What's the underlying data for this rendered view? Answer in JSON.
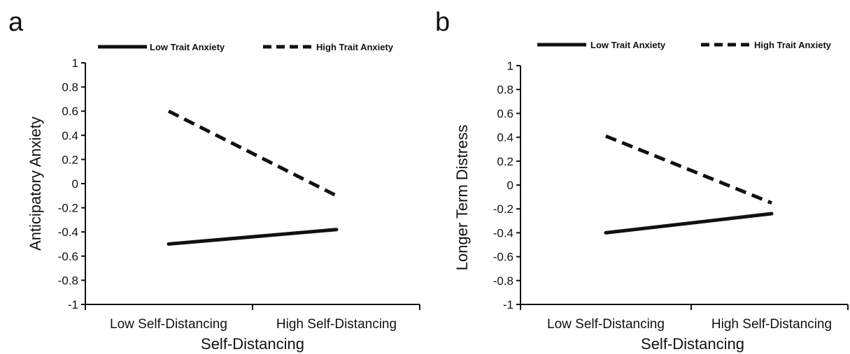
{
  "chart_data": [
    {
      "panel": "a",
      "type": "line",
      "categories": [
        "Low Self-Distancing",
        "High Self-Distancing"
      ],
      "series": [
        {
          "name": "Low Trait Anxiety",
          "values": [
            -0.5,
            -0.38
          ],
          "style": "solid",
          "color": "#111111"
        },
        {
          "name": "High Trait Anxiety",
          "values": [
            0.6,
            -0.1
          ],
          "style": "dashed",
          "color": "#111111"
        }
      ],
      "xlabel": "Self-Distancing",
      "ylabel": "Anticipatory Anxiety",
      "ylim": [
        -1,
        1
      ],
      "yticks": [
        1,
        0.8,
        0.6,
        0.4,
        0.2,
        0,
        -0.2,
        -0.4,
        -0.6,
        -0.8,
        -1
      ],
      "ytick_labels": [
        "1",
        "0.8",
        "0.6",
        "0.4",
        "0.2",
        "0",
        "-0.2",
        "-0.4",
        "-0.6",
        "-0.8",
        "-1"
      ],
      "grid": false,
      "legend_position": "top"
    },
    {
      "panel": "b",
      "type": "line",
      "categories": [
        "Low Self-Distancing",
        "High Self-Distancing"
      ],
      "series": [
        {
          "name": "Low Trait Anxiety",
          "values": [
            -0.4,
            -0.24
          ],
          "style": "solid",
          "color": "#111111"
        },
        {
          "name": "High Trait Anxiety",
          "values": [
            0.41,
            -0.15
          ],
          "style": "dashed",
          "color": "#111111"
        }
      ],
      "xlabel": "Self-Distancing",
      "ylabel": "Longer Term Distress",
      "ylim": [
        -1,
        1
      ],
      "yticks": [
        1,
        0.8,
        0.6,
        0.4,
        0.2,
        0,
        -0.2,
        -0.4,
        -0.6,
        -0.8,
        -1
      ],
      "ytick_labels": [
        "1",
        "0.8",
        "0.6",
        "0.4",
        "0.2",
        "0",
        "-0.2",
        "-0.4",
        "-0.6",
        "-0.8",
        "-1"
      ],
      "grid": false,
      "legend_position": "top"
    }
  ]
}
